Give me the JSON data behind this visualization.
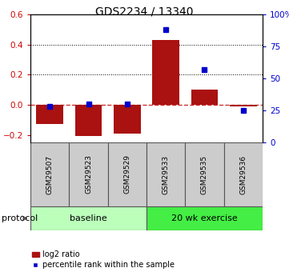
{
  "title": "GDS2234 / 13340",
  "samples": [
    "GSM29507",
    "GSM29523",
    "GSM29529",
    "GSM29533",
    "GSM29535",
    "GSM29536"
  ],
  "log2_ratio": [
    -0.13,
    -0.21,
    -0.19,
    0.43,
    0.1,
    -0.01
  ],
  "percentile": [
    28,
    30,
    30,
    88,
    57,
    25
  ],
  "ylim_left": [
    -0.25,
    0.6
  ],
  "ylim_right": [
    0,
    100
  ],
  "yticks_left": [
    -0.2,
    0.0,
    0.2,
    0.4,
    0.6
  ],
  "yticks_right": [
    0,
    25,
    50,
    75,
    100
  ],
  "ytick_labels_right": [
    "0",
    "25",
    "50",
    "75",
    "100%"
  ],
  "bar_color": "#aa1111",
  "dot_color": "#0000cc",
  "dashed_line_color": "#cc3333",
  "grid_color": "#000000",
  "protocol_groups": [
    {
      "label": "baseline",
      "start": 0,
      "end": 3,
      "color": "#bbffbb"
    },
    {
      "label": "20 wk exercise",
      "start": 3,
      "end": 6,
      "color": "#44ee44"
    }
  ],
  "legend_bar_label": "log2 ratio",
  "legend_dot_label": "percentile rank within the sample",
  "tick_label_color_left": "#cc0000",
  "tick_label_color_right": "#0000cc",
  "protocol_label": "protocol",
  "sample_box_color": "#cccccc",
  "sample_box_edge": "#555555"
}
